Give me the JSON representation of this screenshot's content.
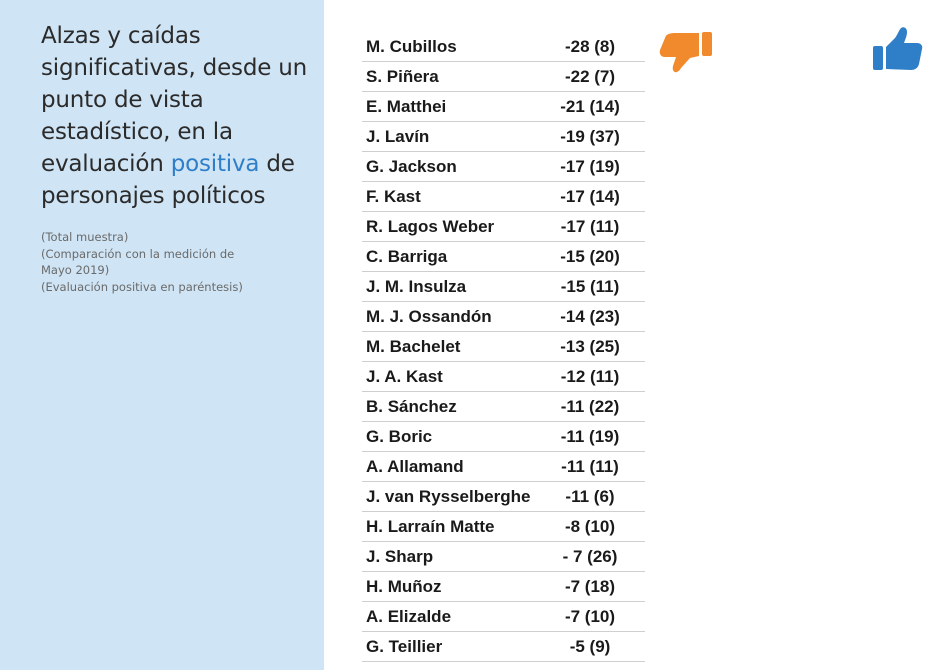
{
  "title": {
    "line1": "Alzas y caídas",
    "line2": "significativas, desde un",
    "line3": "punto de vista",
    "line4": "estadístico, en la",
    "line5_before": "evaluación ",
    "line5_accent": "positiva",
    "line5_after": " de",
    "line6": "personajes políticos"
  },
  "notes": [
    "(Total muestra)",
    "(Comparación con la medición de",
    "Mayo 2019)",
    "(Evaluación positiva en paréntesis)"
  ],
  "icons": {
    "thumbs_down": {
      "name": "thumbs-down-icon",
      "color": "#f08a2c"
    },
    "thumbs_up": {
      "name": "thumbs-up-icon",
      "color": "#2f7fc8"
    }
  },
  "rows": [
    {
      "name": "M. Cubillos",
      "value": "-28 (8)"
    },
    {
      "name": "S. Piñera",
      "value": "-22 (7)"
    },
    {
      "name": "E. Matthei",
      "value": "-21 (14)"
    },
    {
      "name": "J. Lavín",
      "value": "-19 (37)"
    },
    {
      "name": "G. Jackson",
      "value": "-17 (19)"
    },
    {
      "name": "F. Kast",
      "value": "-17 (14)"
    },
    {
      "name": "R. Lagos Weber",
      "value": "-17 (11)"
    },
    {
      "name": "C. Barriga",
      "value": "-15 (20)"
    },
    {
      "name": "J. M. Insulza",
      "value": "-15 (11)"
    },
    {
      "name": "M. J. Ossandón",
      "value": "-14 (23)"
    },
    {
      "name": "M. Bachelet",
      "value": "-13 (25)"
    },
    {
      "name": "J. A. Kast",
      "value": "-12 (11)"
    },
    {
      "name": "B. Sánchez",
      "value": "-11 (22)"
    },
    {
      "name": "G. Boric",
      "value": "-11 (19)"
    },
    {
      "name": "A. Allamand",
      "value": "-11 (11)"
    },
    {
      "name": "J. van Rysselberghe",
      "value": "-11 (6)"
    },
    {
      "name": "H. Larraín Matte",
      "value": "-8 (10)"
    },
    {
      "name": "J. Sharp",
      "value": "- 7 (26)"
    },
    {
      "name": "H. Muñoz",
      "value": "-7 (18)"
    },
    {
      "name": "A. Elizalde",
      "value": "-7 (10)"
    },
    {
      "name": "G. Teillier",
      "value": "-5 (9)"
    }
  ]
}
